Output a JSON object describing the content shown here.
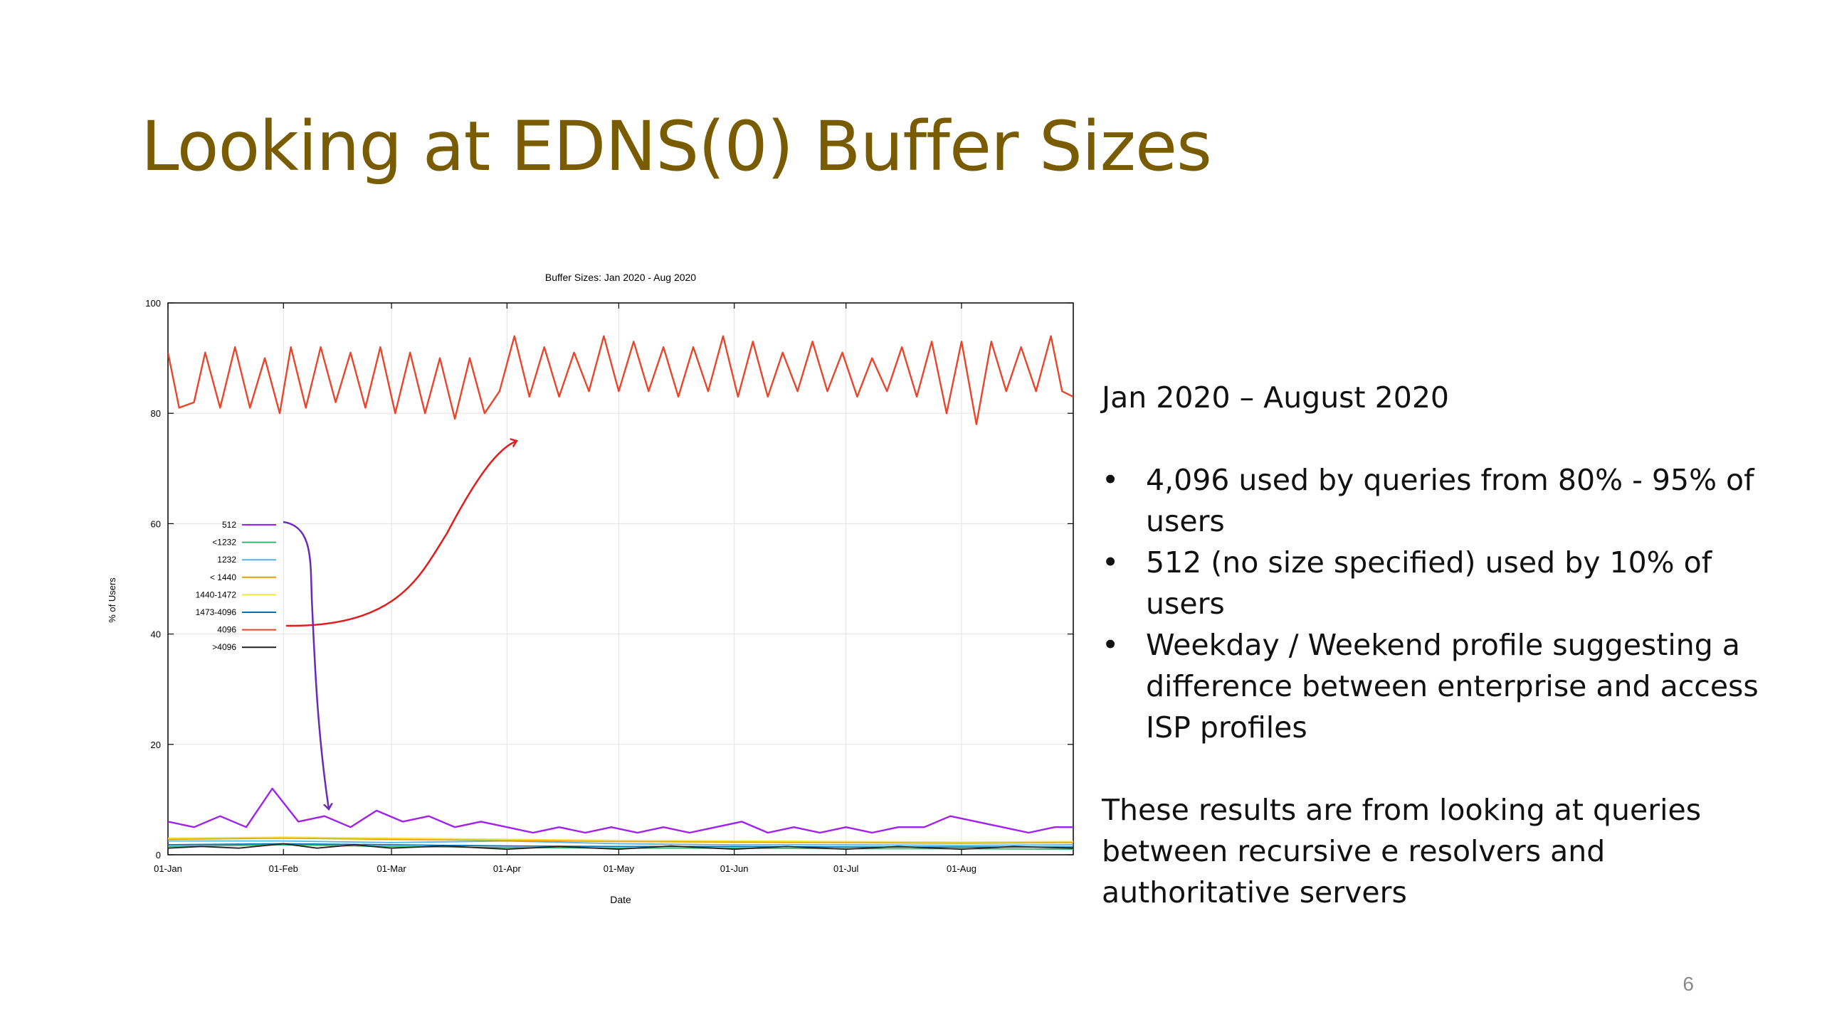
{
  "slide": {
    "title": "Looking at EDNS(0) Buffer Sizes",
    "page_number": "6",
    "subtitle": "Jan 2020 – August 2020",
    "bullets": [
      "4,096 used by queries from 80% - 95% of users",
      "512 (no size specified) used by 10% of users",
      "Weekday / Weekend profile suggesting a difference between enterprise and access ISP profiles"
    ],
    "note": "These results are from looking at queries between recursive e resolvers and authoritative servers"
  },
  "chart_data": {
    "type": "line",
    "title": "Buffer Sizes: Jan 2020 - Aug 2020",
    "xlabel": "Date",
    "ylabel": "% of Users",
    "x_range": [
      "2020-01-01",
      "2020-08-31"
    ],
    "ylim": [
      0,
      100
    ],
    "x_ticks": [
      "01-Jan",
      "01-Feb",
      "01-Mar",
      "01-Apr",
      "01-May",
      "01-Jun",
      "01-Jul",
      "01-Aug"
    ],
    "x_tick_dates": [
      "2020-01-01",
      "2020-02-01",
      "2020-03-01",
      "2020-04-01",
      "2020-05-01",
      "2020-06-01",
      "2020-07-01",
      "2020-08-01"
    ],
    "y_ticks": [
      0,
      20,
      40,
      60,
      80,
      100
    ],
    "grid": true,
    "legend_position": "middle-left",
    "series": [
      {
        "name": "512",
        "color": "#a020f0",
        "points": [
          [
            "2020-01-01",
            6
          ],
          [
            "2020-01-08",
            5
          ],
          [
            "2020-01-15",
            7
          ],
          [
            "2020-01-22",
            5
          ],
          [
            "2020-01-29",
            12
          ],
          [
            "2020-02-05",
            6
          ],
          [
            "2020-02-12",
            7
          ],
          [
            "2020-02-19",
            5
          ],
          [
            "2020-02-26",
            8
          ],
          [
            "2020-03-04",
            6
          ],
          [
            "2020-03-11",
            7
          ],
          [
            "2020-03-18",
            5
          ],
          [
            "2020-03-25",
            6
          ],
          [
            "2020-04-01",
            5
          ],
          [
            "2020-04-08",
            4
          ],
          [
            "2020-04-15",
            5
          ],
          [
            "2020-04-22",
            4
          ],
          [
            "2020-04-29",
            5
          ],
          [
            "2020-05-06",
            4
          ],
          [
            "2020-05-13",
            5
          ],
          [
            "2020-05-20",
            4
          ],
          [
            "2020-05-27",
            5
          ],
          [
            "2020-06-03",
            6
          ],
          [
            "2020-06-10",
            4
          ],
          [
            "2020-06-17",
            5
          ],
          [
            "2020-06-24",
            4
          ],
          [
            "2020-07-01",
            5
          ],
          [
            "2020-07-08",
            4
          ],
          [
            "2020-07-15",
            5
          ],
          [
            "2020-07-22",
            5
          ],
          [
            "2020-07-29",
            7
          ],
          [
            "2020-08-05",
            6
          ],
          [
            "2020-08-12",
            5
          ],
          [
            "2020-08-19",
            4
          ],
          [
            "2020-08-26",
            5
          ],
          [
            "2020-08-31",
            5
          ]
        ]
      },
      {
        "name": "<1232",
        "color": "#3cb371",
        "points": [
          [
            "2020-01-01",
            1.5
          ],
          [
            "2020-02-01",
            1.8
          ],
          [
            "2020-03-01",
            1.5
          ],
          [
            "2020-04-01",
            1.3
          ],
          [
            "2020-05-01",
            1.2
          ],
          [
            "2020-06-01",
            1.2
          ],
          [
            "2020-07-01",
            1.1
          ],
          [
            "2020-08-01",
            1.1
          ],
          [
            "2020-08-31",
            1.0
          ]
        ]
      },
      {
        "name": "1232",
        "color": "#56b4e9",
        "points": [
          [
            "2020-01-01",
            2.5
          ],
          [
            "2020-02-01",
            2.5
          ],
          [
            "2020-03-01",
            2.2
          ],
          [
            "2020-04-01",
            2.5
          ],
          [
            "2020-05-01",
            2.0
          ],
          [
            "2020-06-01",
            1.8
          ],
          [
            "2020-07-01",
            1.8
          ],
          [
            "2020-08-01",
            1.7
          ],
          [
            "2020-08-31",
            1.8
          ]
        ]
      },
      {
        "name": "< 1440",
        "color": "#e69f00",
        "points": [
          [
            "2020-01-01",
            2.8
          ],
          [
            "2020-02-01",
            3.0
          ],
          [
            "2020-03-01",
            2.8
          ],
          [
            "2020-04-01",
            2.6
          ],
          [
            "2020-05-01",
            2.4
          ],
          [
            "2020-06-01",
            2.3
          ],
          [
            "2020-07-01",
            2.2
          ],
          [
            "2020-08-01",
            2.1
          ],
          [
            "2020-08-31",
            2.2
          ]
        ]
      },
      {
        "name": "1440-1472",
        "color": "#f0e442",
        "points": [
          [
            "2020-01-01",
            3.0
          ],
          [
            "2020-02-01",
            3.2
          ],
          [
            "2020-03-01",
            3.0
          ],
          [
            "2020-04-01",
            2.8
          ],
          [
            "2020-05-01",
            2.6
          ],
          [
            "2020-06-01",
            2.5
          ],
          [
            "2020-07-01",
            2.4
          ],
          [
            "2020-08-01",
            2.3
          ],
          [
            "2020-08-31",
            2.4
          ]
        ]
      },
      {
        "name": "1473-4096",
        "color": "#0072b2",
        "points": [
          [
            "2020-01-01",
            1.8
          ],
          [
            "2020-02-01",
            2.0
          ],
          [
            "2020-03-01",
            1.8
          ],
          [
            "2020-04-01",
            1.6
          ],
          [
            "2020-05-01",
            1.5
          ],
          [
            "2020-06-01",
            1.5
          ],
          [
            "2020-07-01",
            1.4
          ],
          [
            "2020-08-01",
            1.4
          ],
          [
            "2020-08-31",
            1.4
          ]
        ]
      },
      {
        "name": "4096",
        "color": "#e8452b",
        "points": [
          [
            "2020-01-01",
            91
          ],
          [
            "2020-01-04",
            81
          ],
          [
            "2020-01-08",
            82
          ],
          [
            "2020-01-11",
            91
          ],
          [
            "2020-01-15",
            81
          ],
          [
            "2020-01-19",
            92
          ],
          [
            "2020-01-23",
            81
          ],
          [
            "2020-01-27",
            90
          ],
          [
            "2020-01-31",
            80
          ],
          [
            "2020-02-03",
            92
          ],
          [
            "2020-02-07",
            81
          ],
          [
            "2020-02-11",
            92
          ],
          [
            "2020-02-15",
            82
          ],
          [
            "2020-02-19",
            91
          ],
          [
            "2020-02-23",
            81
          ],
          [
            "2020-02-27",
            92
          ],
          [
            "2020-03-02",
            80
          ],
          [
            "2020-03-06",
            91
          ],
          [
            "2020-03-10",
            80
          ],
          [
            "2020-03-14",
            90
          ],
          [
            "2020-03-18",
            79
          ],
          [
            "2020-03-22",
            90
          ],
          [
            "2020-03-26",
            80
          ],
          [
            "2020-03-30",
            84
          ],
          [
            "2020-04-03",
            94
          ],
          [
            "2020-04-07",
            83
          ],
          [
            "2020-04-11",
            92
          ],
          [
            "2020-04-15",
            83
          ],
          [
            "2020-04-19",
            91
          ],
          [
            "2020-04-23",
            84
          ],
          [
            "2020-04-27",
            94
          ],
          [
            "2020-05-01",
            84
          ],
          [
            "2020-05-05",
            93
          ],
          [
            "2020-05-09",
            84
          ],
          [
            "2020-05-13",
            92
          ],
          [
            "2020-05-17",
            83
          ],
          [
            "2020-05-21",
            92
          ],
          [
            "2020-05-25",
            84
          ],
          [
            "2020-05-29",
            94
          ],
          [
            "2020-06-02",
            83
          ],
          [
            "2020-06-06",
            93
          ],
          [
            "2020-06-10",
            83
          ],
          [
            "2020-06-14",
            91
          ],
          [
            "2020-06-18",
            84
          ],
          [
            "2020-06-22",
            93
          ],
          [
            "2020-06-26",
            84
          ],
          [
            "2020-06-30",
            91
          ],
          [
            "2020-07-04",
            83
          ],
          [
            "2020-07-08",
            90
          ],
          [
            "2020-07-12",
            84
          ],
          [
            "2020-07-16",
            92
          ],
          [
            "2020-07-20",
            83
          ],
          [
            "2020-07-24",
            93
          ],
          [
            "2020-07-28",
            80
          ],
          [
            "2020-08-01",
            93
          ],
          [
            "2020-08-05",
            78
          ],
          [
            "2020-08-09",
            93
          ],
          [
            "2020-08-13",
            84
          ],
          [
            "2020-08-17",
            92
          ],
          [
            "2020-08-21",
            84
          ],
          [
            "2020-08-25",
            94
          ],
          [
            "2020-08-28",
            84
          ],
          [
            "2020-08-31",
            83
          ]
        ]
      },
      {
        "name": ">4096",
        "color": "#222222",
        "points": [
          [
            "2020-01-01",
            1.2
          ],
          [
            "2020-01-10",
            1.5
          ],
          [
            "2020-01-20",
            1.2
          ],
          [
            "2020-02-01",
            2.0
          ],
          [
            "2020-02-10",
            1.2
          ],
          [
            "2020-02-20",
            1.8
          ],
          [
            "2020-03-01",
            1.2
          ],
          [
            "2020-03-15",
            1.6
          ],
          [
            "2020-04-01",
            1.0
          ],
          [
            "2020-04-15",
            1.5
          ],
          [
            "2020-05-01",
            1.0
          ],
          [
            "2020-05-15",
            1.6
          ],
          [
            "2020-06-01",
            1.0
          ],
          [
            "2020-06-15",
            1.5
          ],
          [
            "2020-07-01",
            1.0
          ],
          [
            "2020-07-15",
            1.5
          ],
          [
            "2020-08-01",
            1.0
          ],
          [
            "2020-08-15",
            1.5
          ],
          [
            "2020-08-31",
            1.2
          ]
        ]
      }
    ]
  }
}
